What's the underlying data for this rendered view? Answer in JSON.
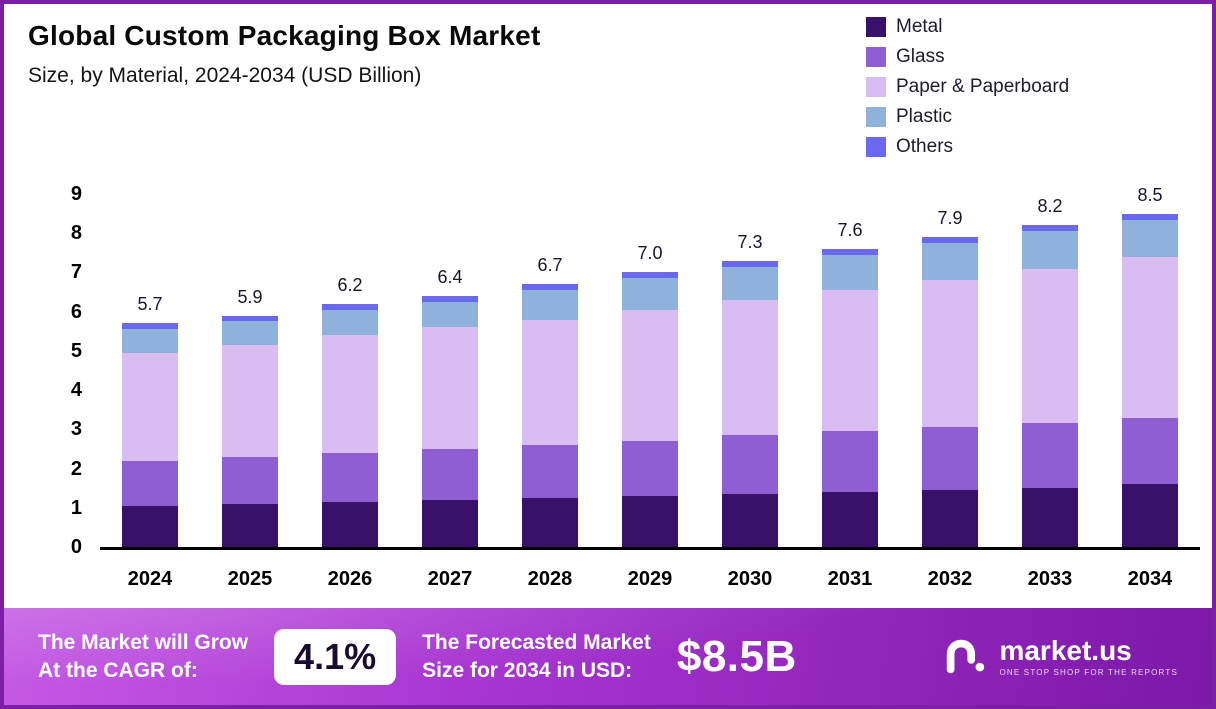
{
  "header": {
    "title": "Global Custom Packaging Box Market",
    "subtitle": "Size, by Material, 2024-2034 (USD Billion)"
  },
  "chart_data": {
    "type": "bar",
    "stacked": true,
    "title": "Global Custom Packaging Box Market",
    "subtitle": "Size, by Material, 2024-2034 (USD Billion)",
    "unit": "USD Billion",
    "categories": [
      "2024",
      "2025",
      "2026",
      "2027",
      "2028",
      "2029",
      "2030",
      "2031",
      "2032",
      "2033",
      "2034"
    ],
    "series": [
      {
        "name": "Metal",
        "color": "#3a1168",
        "values": [
          1.05,
          1.1,
          1.15,
          1.2,
          1.25,
          1.3,
          1.35,
          1.4,
          1.45,
          1.5,
          1.6
        ]
      },
      {
        "name": "Glass",
        "color": "#8e5ed2",
        "values": [
          1.15,
          1.2,
          1.25,
          1.3,
          1.35,
          1.4,
          1.5,
          1.55,
          1.6,
          1.65,
          1.7
        ]
      },
      {
        "name": "Paper & Paperboard",
        "color": "#d9bdf2",
        "values": [
          2.75,
          2.85,
          3.0,
          3.1,
          3.2,
          3.35,
          3.45,
          3.6,
          3.75,
          3.95,
          4.1
        ]
      },
      {
        "name": "Plastic",
        "color": "#8fb2dc",
        "values": [
          0.6,
          0.6,
          0.65,
          0.65,
          0.75,
          0.8,
          0.85,
          0.9,
          0.95,
          0.95,
          0.95
        ]
      },
      {
        "name": "Others",
        "color": "#6a68ee",
        "values": [
          0.15,
          0.15,
          0.15,
          0.15,
          0.15,
          0.15,
          0.15,
          0.15,
          0.15,
          0.15,
          0.15
        ]
      }
    ],
    "totals": [
      5.7,
      5.9,
      6.2,
      6.4,
      6.7,
      7.0,
      7.3,
      7.6,
      7.9,
      8.2,
      8.5
    ],
    "ylim": [
      0,
      9
    ],
    "yticks": [
      0,
      1,
      2,
      3,
      4,
      5,
      6,
      7,
      8,
      9
    ],
    "grid": false,
    "legend_position": "top-right"
  },
  "footer": {
    "cagr_label": "The Market will Grow\nAt the CAGR of:",
    "cagr_value": "4.1%",
    "forecast_label": "The Forecasted Market\nSize for 2034 in USD:",
    "forecast_value": "$8.5B",
    "brand": "market.us",
    "brand_tagline": "ONE STOP SHOP FOR THE REPORTS"
  }
}
